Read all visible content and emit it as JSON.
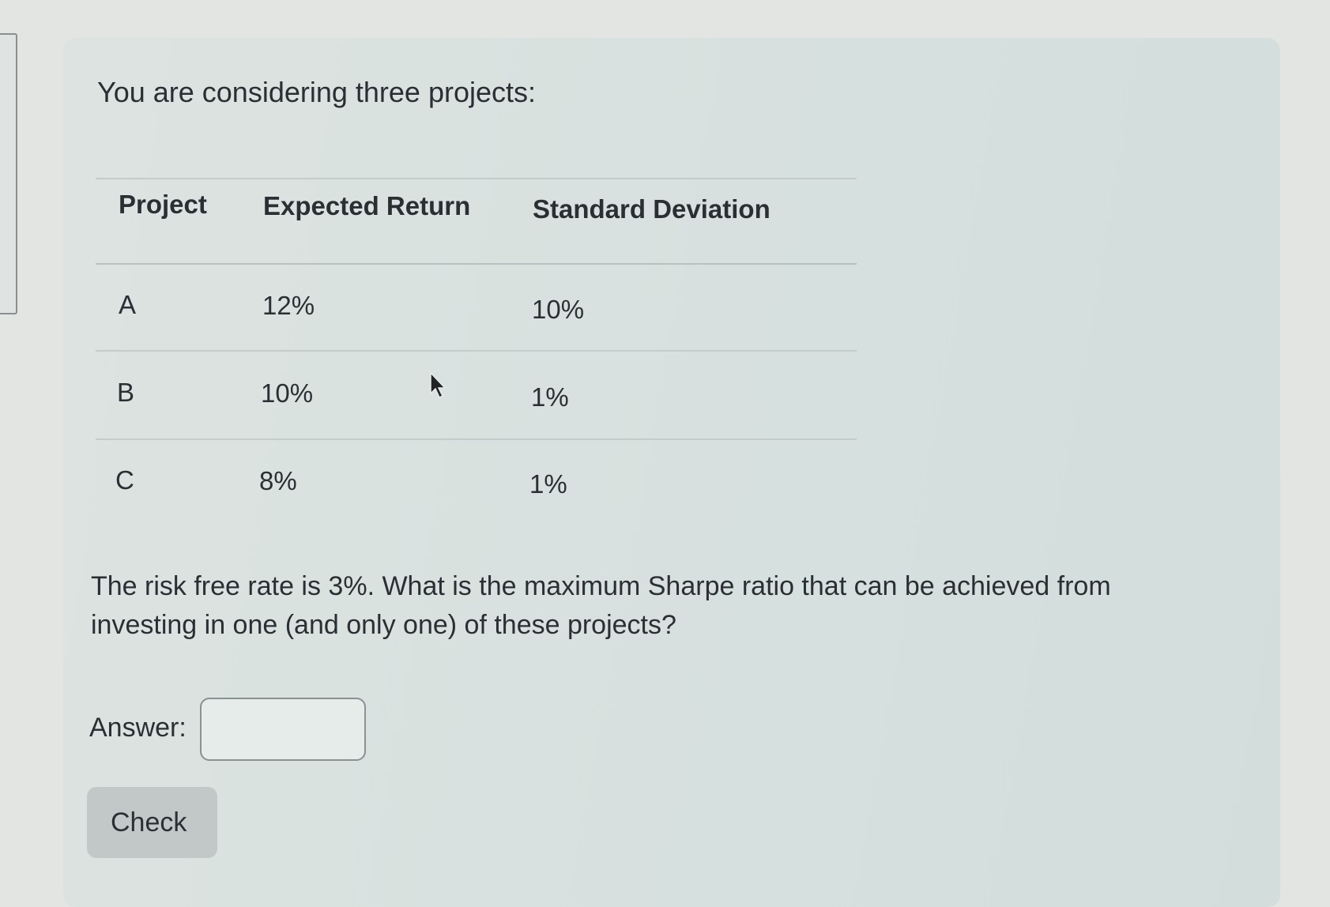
{
  "question": {
    "intro": "You are considering three projects:",
    "table": {
      "headers": [
        "Project",
        "Expected Return",
        "Standard Deviation"
      ],
      "rows": [
        [
          "A",
          "12%",
          "10%"
        ],
        [
          "B",
          "10%",
          "1%"
        ],
        [
          "C",
          "8%",
          "1%"
        ]
      ]
    },
    "prompt": "The risk free rate is 3%. What is the maximum Sharpe ratio that can be achieved from investing in one (and only one) of these projects?"
  },
  "answer": {
    "label": "Answer:",
    "value": "",
    "placeholder": ""
  },
  "check_label": "Check",
  "icons": {
    "cursor": "mouse-pointer-icon"
  }
}
